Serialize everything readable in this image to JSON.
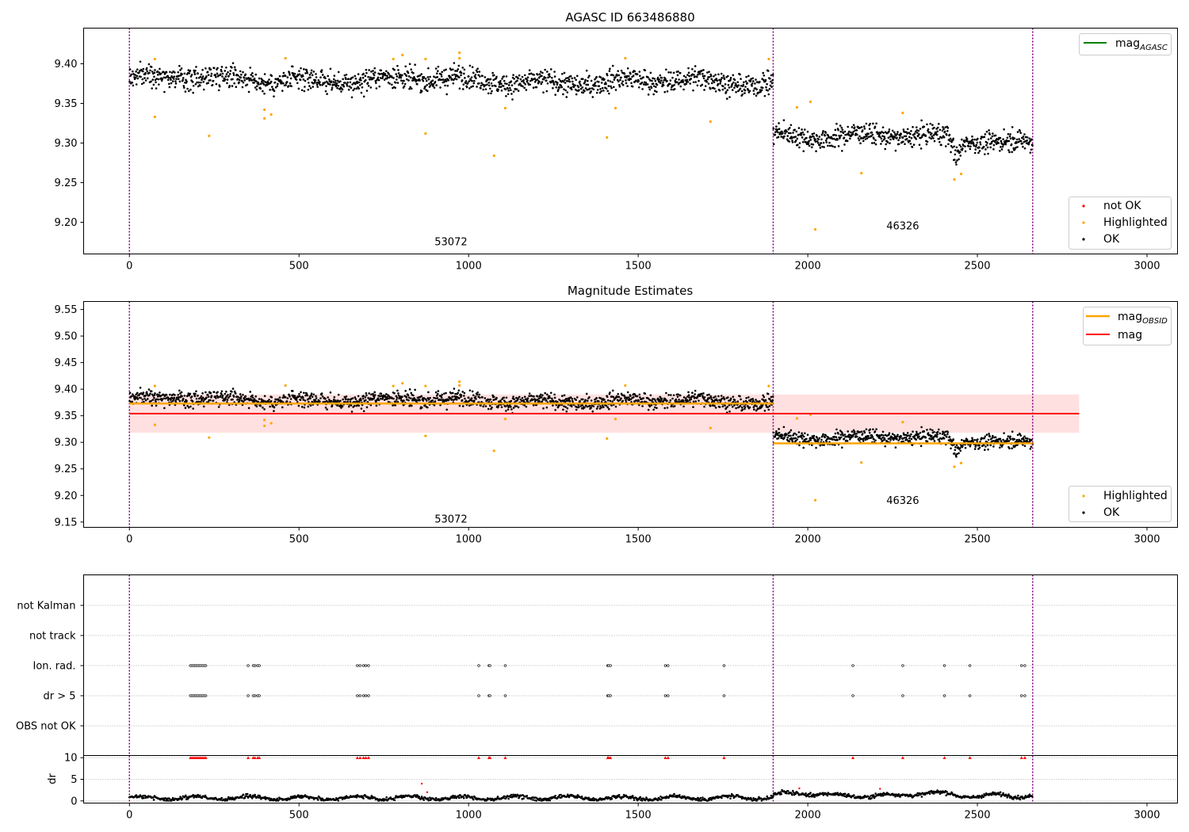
{
  "figure": {
    "title_top": "AGASC ID 663486880",
    "title_mid": "Magnitude Estimates"
  },
  "colors": {
    "ok": "#000000",
    "highlighted": "#ffa500",
    "not_ok": "#ff0000",
    "mag_agasc": "#008000",
    "mag_obsid": "#ffa500",
    "mag": "#ff0000",
    "obs_boundary": "#800080",
    "mag_band": "#ffcccc"
  },
  "chart_data": [
    {
      "type": "scatter",
      "name": "magnitude-vs-index",
      "title": "AGASC ID 663486880",
      "xlim": [
        -135,
        3090
      ],
      "ylim": [
        9.16,
        9.445
      ],
      "x_ticks": [
        0,
        500,
        1000,
        1500,
        2000,
        2500,
        3000
      ],
      "y_ticks": [
        9.2,
        9.25,
        9.3,
        9.35,
        9.4
      ],
      "y_tick_labels": [
        "9.20",
        "9.25",
        "9.30",
        "9.35",
        "9.40"
      ],
      "grid": false,
      "legend_upper": {
        "placement": "top-right",
        "entries": [
          "mag",
          "AGASC"
        ]
      },
      "legend_lower": {
        "placement": "bottom-right",
        "entries": [
          "not OK",
          "Highlighted",
          "OK"
        ]
      },
      "obs_boundaries": [
        0,
        1898,
        2663
      ],
      "obs_labels": [
        {
          "text": "53072",
          "x": 948,
          "y": 9.175
        },
        {
          "text": "46326",
          "x": 2280,
          "y": 9.195
        }
      ],
      "ok_segments": [
        {
          "x0": 0,
          "x1": 1898,
          "mean_start": 9.382,
          "mean_end": 9.376,
          "spread": 0.012,
          "n": 1500
        },
        {
          "x0": 1898,
          "x1": 2663,
          "mean_start": 9.312,
          "mean_end": 9.302,
          "spread": 0.011,
          "n": 620
        }
      ],
      "dip": {
        "x_center": 2440,
        "width": 25,
        "depth": 0.025
      },
      "highlighted_points": [
        [
          75,
          9.406
        ],
        [
          75,
          9.333
        ],
        [
          235,
          9.309
        ],
        [
          398,
          9.331
        ],
        [
          398,
          9.342
        ],
        [
          418,
          9.336
        ],
        [
          460,
          9.407
        ],
        [
          778,
          9.406
        ],
        [
          805,
          9.411
        ],
        [
          873,
          9.312
        ],
        [
          873,
          9.406
        ],
        [
          973,
          9.414
        ],
        [
          973,
          9.407
        ],
        [
          1075,
          9.284
        ],
        [
          1108,
          9.344
        ],
        [
          1408,
          9.307
        ],
        [
          1433,
          9.344
        ],
        [
          1462,
          9.407
        ],
        [
          1713,
          9.327
        ],
        [
          1885,
          9.406
        ],
        [
          1968,
          9.345
        ],
        [
          2008,
          9.352
        ],
        [
          2022,
          9.191
        ],
        [
          2158,
          9.262
        ],
        [
          2280,
          9.338
        ],
        [
          2432,
          9.254
        ],
        [
          2452,
          9.261
        ]
      ],
      "mag_agasc": null
    },
    {
      "type": "scatter",
      "name": "magnitude-estimates",
      "title": "Magnitude Estimates",
      "xlim": [
        -135,
        3090
      ],
      "ylim": [
        9.14,
        9.565
      ],
      "x_ticks": [
        0,
        500,
        1000,
        1500,
        2000,
        2500,
        3000
      ],
      "y_ticks": [
        9.15,
        9.2,
        9.25,
        9.3,
        9.35,
        9.4,
        9.45,
        9.5,
        9.55
      ],
      "y_tick_labels": [
        "9.15",
        "9.20",
        "9.25",
        "9.30",
        "9.35",
        "9.40",
        "9.45",
        "9.50",
        "9.55"
      ],
      "grid": false,
      "legend_upper": {
        "placement": "top-right",
        "entries": [
          "mag",
          "OBSID",
          "mag"
        ]
      },
      "legend_lower": {
        "placement": "bottom-right",
        "entries": [
          "Highlighted",
          "OK"
        ]
      },
      "obs_boundaries": [
        0,
        1898,
        2663
      ],
      "obs_labels": [
        {
          "text": "53072",
          "x": 948,
          "y": 9.155
        },
        {
          "text": "46326",
          "x": 2280,
          "y": 9.19
        }
      ],
      "mag": {
        "value": 9.354,
        "low": 9.318,
        "high": 9.39,
        "x0": 0,
        "x1": 2800
      },
      "mag_obsid": [
        {
          "x0": 0,
          "x1": 1898,
          "value": 9.373
        },
        {
          "x0": 1898,
          "x1": 2663,
          "value": 9.298
        }
      ]
    },
    {
      "type": "scatter",
      "name": "flags",
      "xlim": [
        -135,
        3090
      ],
      "categories": [
        "OBS not OK",
        "dr > 5",
        "Ion. rad.",
        "not track",
        "not Kalman"
      ],
      "grid": "horizontal-dotted",
      "flag_x": [
        180,
        185,
        190,
        195,
        200,
        205,
        210,
        215,
        220,
        225,
        350,
        365,
        370,
        378,
        383,
        672,
        680,
        690,
        697,
        705,
        1030,
        1060,
        1063,
        1108,
        1410,
        1413,
        1418,
        1580,
        1588,
        1753,
        2133,
        2280,
        2403,
        2478,
        2630,
        2640
      ],
      "flag_rows": [
        "dr > 5",
        "Ion. rad."
      ],
      "obs_boundaries": [
        0,
        1898,
        2663
      ]
    },
    {
      "type": "scatter",
      "name": "dr",
      "ylabel": "dr",
      "xlim": [
        -135,
        3090
      ],
      "ylim": [
        -0.5,
        10.5
      ],
      "x_ticks": [
        0,
        500,
        1000,
        1500,
        2000,
        2500,
        3000
      ],
      "x_tick_labels": [
        "0",
        "500",
        "1000",
        "1500",
        "2000",
        "2500",
        "3000"
      ],
      "y_ticks": [
        0,
        5,
        10
      ],
      "y_tick_labels": [
        "0",
        "5",
        "10"
      ],
      "grid": "horizontal-dotted",
      "clipped_at": 10,
      "baseline": {
        "seg1_level": 0.7,
        "seg2_level": 1.2,
        "spread": 0.35
      },
      "outliers": [
        [
          862,
          4.0
        ],
        [
          878,
          2.0
        ],
        [
          1975,
          2.9
        ],
        [
          2213,
          2.8
        ]
      ],
      "obs_boundaries": [
        0,
        1898,
        2663
      ]
    }
  ]
}
